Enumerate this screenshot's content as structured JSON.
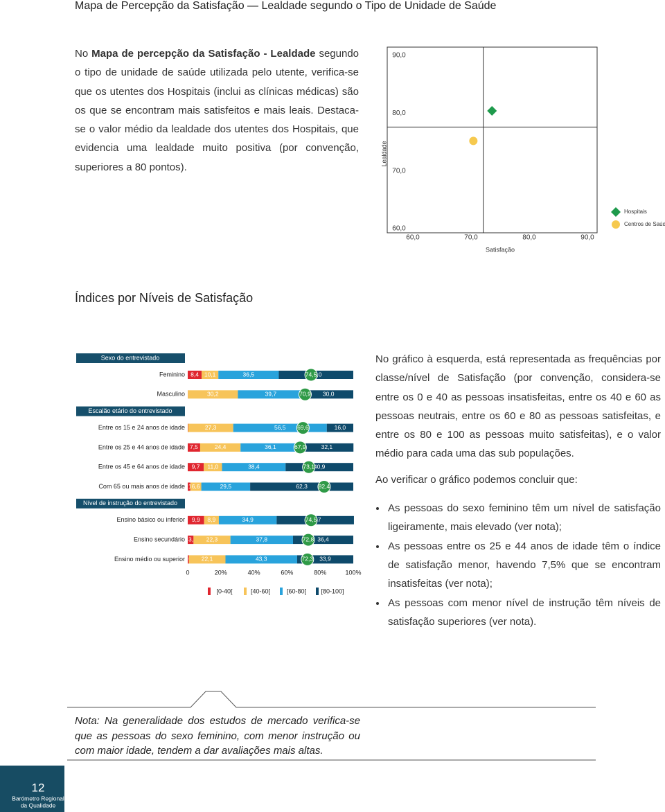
{
  "header": {
    "title": "Mapa de Percepção da Satisfação — Lealdade segundo o Tipo de Unidade de Saúde"
  },
  "intro": {
    "lead": "No",
    "bold": "Mapa de percepção da Satisfação - Lealdade",
    "text": "segundo o tipo de unidade de saúde utilizada pelo utente, verifica-se que os utentes dos Hospitais (inclui as clínicas médicas) são os que se encontram mais satisfeitos e mais leais. Destaca-se o valor médio da lealdade dos utentes dos Hospitais, que evidencia uma lealdade muito positiva (por convenção, superiores a 80 pontos)."
  },
  "section_title": "Índices por Níveis de Satisfação",
  "chart_data": [
    {
      "type": "scatter",
      "x_label": "Satisfação",
      "y_label": "Lealdade",
      "xlim": [
        60,
        90
      ],
      "ylim": [
        60,
        90
      ],
      "xticks": [
        {
          "value": 60,
          "label": "60,0"
        },
        {
          "value": 70,
          "label": "70,0"
        },
        {
          "value": 80,
          "label": "80,0"
        },
        {
          "value": 90,
          "label": "90,0"
        }
      ],
      "yticks": [
        {
          "value": 60,
          "label": "60,0"
        },
        {
          "value": 70,
          "label": "70,0"
        },
        {
          "value": 80,
          "label": "80,0"
        },
        {
          "value": 90,
          "label": "90,0"
        }
      ],
      "reference_lines": {
        "x": 72.1,
        "y": 77.6
      },
      "legend": "right",
      "series": [
        {
          "name": "Hospitais",
          "color": "#1e9a4c",
          "marker": "diamond",
          "x": [
            73.6
          ],
          "y": [
            80.4
          ]
        },
        {
          "name": "Centros de Saúde",
          "color": "#f6c94e",
          "marker": "circle",
          "x": [
            70.4
          ],
          "y": [
            75.2
          ]
        }
      ]
    },
    {
      "type": "stacked-bar",
      "xlim": [
        0,
        100
      ],
      "xticks": [
        0,
        {
          "value": 20,
          "label": "20%"
        },
        {
          "value": 40,
          "label": "40%"
        },
        {
          "value": 60,
          "label": "60%"
        },
        {
          "value": 80,
          "label": "80%"
        },
        {
          "value": 100,
          "label": "100%"
        }
      ],
      "groups": [
        {
          "title": "Sexo do entrevistado",
          "categories": [
            "Feminino",
            "Masculino"
          ]
        },
        {
          "title": "Escalão etário do entrevistado",
          "categories": [
            "Entre os 15 e 24 anos de idade",
            "Entre os 25 e 44 anos de idade",
            "Entre os 45 e 64 anos de idade",
            "Com 65 ou mais anos de idade"
          ]
        },
        {
          "title": "Nível de instrução do entrevistado",
          "categories": [
            "Ensino básico ou inferior",
            "Ensino secundário",
            "Ensino médio ou superior"
          ]
        }
      ],
      "series": [
        {
          "name": "[0-40[",
          "color": "#e0262f",
          "values": [
            8.4,
            0.1,
            0.2,
            7.5,
            9.7,
            1.6,
            9.9,
            3.5,
            0.7
          ],
          "value_labels": [
            "8,4",
            "0,1",
            "0,2",
            "7,5",
            "9,7",
            "1,6",
            "9,9",
            "3,5",
            "0,7"
          ]
        },
        {
          "name": "[40-60[",
          "color": "#f7c45a",
          "values": [
            10.1,
            30.2,
            27.3,
            24.4,
            11.0,
            6.6,
            8.9,
            22.3,
            22.1
          ],
          "value_labels": [
            "10,1",
            "30,2",
            "27,3",
            "24,4",
            "11,0",
            "6,6",
            "8,9",
            "22,3",
            "22,1"
          ]
        },
        {
          "name": "[60-80[",
          "color": "#29a3dc",
          "values": [
            36.5,
            39.7,
            56.5,
            36.1,
            38.4,
            29.5,
            34.9,
            37.8,
            43.3
          ],
          "value_labels": [
            "36,5",
            "39,7",
            "56,5",
            "36,1",
            "38,4",
            "29,5",
            "34,9",
            "37,8",
            "43,3"
          ]
        },
        {
          "name": "[80-100]",
          "color": "#0e4a6b",
          "values": [
            45.0,
            30.0,
            16.0,
            32.1,
            40.9,
            62.3,
            46.7,
            36.4,
            33.9
          ],
          "value_labels": [
            "45,0",
            "30,0",
            "16,0",
            "32,1",
            "40,9",
            "62,3",
            "46,7",
            "36,4",
            "33,9"
          ]
        }
      ],
      "means": {
        "color": "#2f9a47",
        "values": [
          74.5,
          70.9,
          69.6,
          67.9,
          73.1,
          82.4,
          74.5,
          72.8,
          72.3
        ],
        "value_labels": [
          "74,5",
          "70,9",
          "69,6",
          "67,9",
          "73,1",
          "82,4",
          "74,5",
          "72,8",
          "72,3"
        ]
      },
      "header_color": "#164f6b"
    }
  ],
  "right_text": {
    "paragraphs": [
      "No gráfico à esquerda, está representada as frequências por classe/nível de Satisfação (por convenção, considera-se entre os 0 e 40 as pessoas insatisfeitas, entre os 40 e 60 as pessoas neutrais, entre os 60 e 80 as pessoas satisfeitas, e entre os 80 e 100 as pessoas muito satisfeitas), e o valor médio para cada uma das sub populações.",
      "Ao verificar o gráfico podemos concluir que:"
    ],
    "bullets": [
      "As pessoas do sexo feminino têm um nível de satisfação ligeiramente, mais elevado (ver nota);",
      "As pessoas entre os 25 e 44 anos de idade têm o índice de satisfação menor, havendo 7,5% que se encontram insatisfeitas (ver nota);",
      "As pessoas com menor nível de instrução têm níveis de satisfação superiores (ver nota)."
    ]
  },
  "note": "Nota: Na generalidade dos estudos de mercado verifica-se que as pessoas do sexo feminino, com menor instrução ou com maior idade, tendem a dar avaliações mais altas.",
  "footer": {
    "page": "12",
    "publication": [
      "Barómetro Regional",
      "da Qualidade"
    ]
  }
}
